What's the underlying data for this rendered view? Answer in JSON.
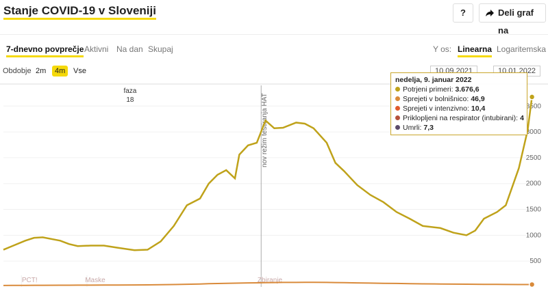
{
  "header": {
    "title": "Stanje COVID-19 v Sloveniji",
    "help": "?",
    "share": "Deli graf na"
  },
  "tabs": {
    "items": [
      "7-dnevno povprečje",
      "Aktivni",
      "Na dan",
      "Skupaj"
    ],
    "axis_label": "Y os:",
    "axis_options": [
      "Linearna",
      "Logaritemska"
    ]
  },
  "period": {
    "label": "Obdobje",
    "options": [
      "2m",
      "4m",
      "Vse"
    ],
    "from": "10.09.2021",
    "to": "10.01.2022"
  },
  "chart_data": {
    "type": "line",
    "log_scale": false,
    "grid": true,
    "x": [
      "2021-09-10",
      "2021-09-12",
      "2021-09-15",
      "2021-09-17",
      "2021-09-19",
      "2021-09-23",
      "2021-09-25",
      "2021-09-27",
      "2021-09-30",
      "2021-10-03",
      "2021-10-06",
      "2021-10-10",
      "2021-10-13",
      "2021-10-16",
      "2021-10-19",
      "2021-10-22",
      "2021-10-25",
      "2021-10-27",
      "2021-10-29",
      "2021-10-31",
      "2021-11-02",
      "2021-11-03",
      "2021-11-05",
      "2021-11-07",
      "2021-11-09",
      "2021-11-11",
      "2021-11-13",
      "2021-11-16",
      "2021-11-18",
      "2021-11-20",
      "2021-11-23",
      "2021-11-25",
      "2021-11-27",
      "2021-11-30",
      "2021-12-03",
      "2021-12-06",
      "2021-12-09",
      "2021-12-12",
      "2021-12-15",
      "2021-12-19",
      "2021-12-22",
      "2021-12-25",
      "2021-12-27",
      "2021-12-29",
      "2022-01-01",
      "2022-01-03",
      "2022-01-06",
      "2022-01-08",
      "2022-01-09"
    ],
    "xlim": [
      "2021-09-10",
      "2022-01-10"
    ],
    "ylim": [
      0,
      3900
    ],
    "yticks": [
      500,
      1000,
      1500,
      2000,
      2500,
      3000,
      3500
    ],
    "series": [
      {
        "color": "#bfa21a",
        "values": [
          720,
          790,
          895,
          950,
          960,
          895,
          830,
          790,
          800,
          800,
          760,
          710,
          720,
          880,
          1180,
          1580,
          1710,
          2000,
          2170,
          2260,
          2100,
          2560,
          2740,
          2790,
          3220,
          3070,
          3080,
          3180,
          3160,
          3070,
          2790,
          2400,
          2240,
          1970,
          1780,
          1640,
          1450,
          1320,
          1180,
          1140,
          1050,
          1000,
          1090,
          1320,
          1450,
          1580,
          2300,
          3030,
          3676.6
        ]
      },
      {
        "color": "#d98a3a",
        "values": [
          28,
          29,
          30,
          31,
          32,
          33,
          33,
          34,
          35,
          36,
          37,
          38,
          40,
          43,
          47,
          52,
          57,
          62,
          66,
          70,
          73,
          75,
          78,
          80,
          83,
          85,
          87,
          88,
          90,
          89,
          88,
          85,
          82,
          78,
          74,
          70,
          67,
          63,
          60,
          57,
          55,
          53,
          51,
          50,
          49,
          48,
          47,
          47,
          46.9
        ]
      }
    ],
    "annotations": [
      {
        "text": "nov režim testiranja HAT",
        "x": "2021-11-08"
      }
    ],
    "phase": {
      "label": "faza",
      "number": "18",
      "x": "2021-10-09"
    },
    "events": [
      {
        "text": "PCT!",
        "x": "2021-09-16"
      },
      {
        "text": "Maske",
        "x": "2021-10-01"
      },
      {
        "text": "Zbiranje",
        "x": "2021-11-10"
      }
    ],
    "tooltip": {
      "title": "nedelja, 9. januar 2022",
      "items": [
        {
          "label": "Potrjeni primeri:",
          "value": "3.676,6",
          "color": "#bfa21a"
        },
        {
          "label": "Sprejeti v bolnišnico:",
          "value": "46,9",
          "color": "#d98a3a"
        },
        {
          "label": "Sprejeti v intenzivno:",
          "value": "10,4",
          "color": "#e05a2b"
        },
        {
          "label": "Priklopljeni na respirator (intubirani):",
          "value": "4",
          "color": "#b5503a"
        },
        {
          "label": "Umrli:",
          "value": "7,3",
          "color": "#5b4a6b"
        }
      ]
    }
  }
}
